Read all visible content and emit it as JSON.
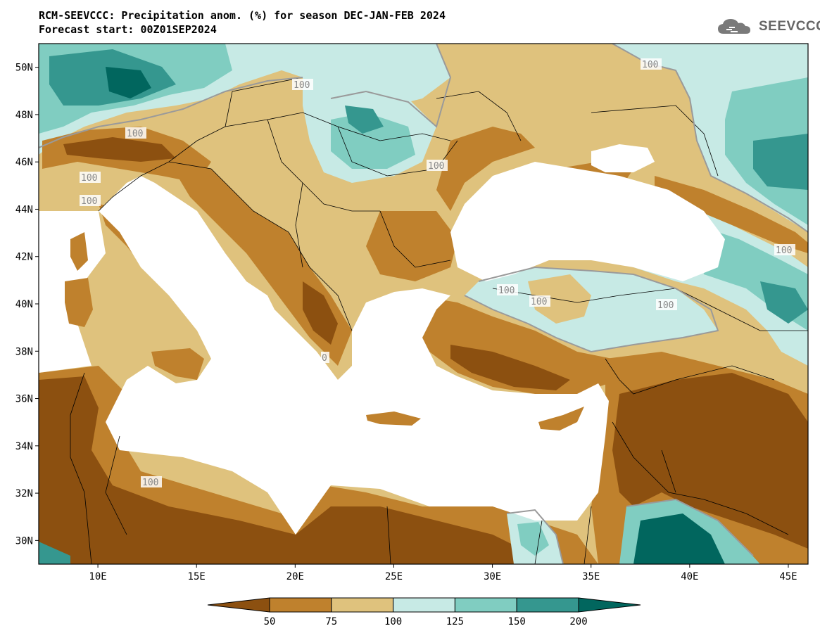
{
  "header": {
    "title_line1": "RCM-SEEVCCC: Precipitation anom. (%) for season DEC-JAN-FEB 2024",
    "title_line2": "Forecast start: 00Z01SEP2024"
  },
  "logo": {
    "text": "SEEVCCC",
    "icon": "cloud-icon"
  },
  "map": {
    "lon_range": [
      7,
      46
    ],
    "lat_range": [
      29,
      51
    ],
    "lat_ticks": [
      {
        "value": 30,
        "label": "30N"
      },
      {
        "value": 32,
        "label": "32N"
      },
      {
        "value": 34,
        "label": "34N"
      },
      {
        "value": 36,
        "label": "36N"
      },
      {
        "value": 38,
        "label": "38N"
      },
      {
        "value": 40,
        "label": "40N"
      },
      {
        "value": 42,
        "label": "42N"
      },
      {
        "value": 44,
        "label": "44N"
      },
      {
        "value": 46,
        "label": "46N"
      },
      {
        "value": 48,
        "label": "48N"
      },
      {
        "value": 50,
        "label": "50N"
      }
    ],
    "lon_ticks": [
      {
        "value": 10,
        "label": "10E"
      },
      {
        "value": 15,
        "label": "15E"
      },
      {
        "value": 20,
        "label": "20E"
      },
      {
        "value": 25,
        "label": "25E"
      },
      {
        "value": 30,
        "label": "30E"
      },
      {
        "value": 35,
        "label": "35E"
      },
      {
        "value": 40,
        "label": "40E"
      },
      {
        "value": 45,
        "label": "45E"
      }
    ],
    "contour_labels": [
      "100",
      "100",
      "100",
      "100",
      "100",
      "100",
      "100",
      "100",
      "100",
      "100",
      "0"
    ]
  },
  "colorbar": {
    "levels": [
      "50",
      "75",
      "100",
      "125",
      "150",
      "200"
    ],
    "colors": [
      "#8c5010",
      "#bf812d",
      "#dfc27d",
      "#c7eae5",
      "#80cdc1",
      "#35978f",
      "#01665e"
    ]
  },
  "palette": {
    "sea": "#ffffff",
    "dry_strong": "#8c5010",
    "dry": "#bf812d",
    "dry_light": "#dfc27d",
    "wet_light": "#c7eae5",
    "wet": "#80cdc1",
    "wet_med": "#35978f",
    "wet_strong": "#01665e"
  }
}
